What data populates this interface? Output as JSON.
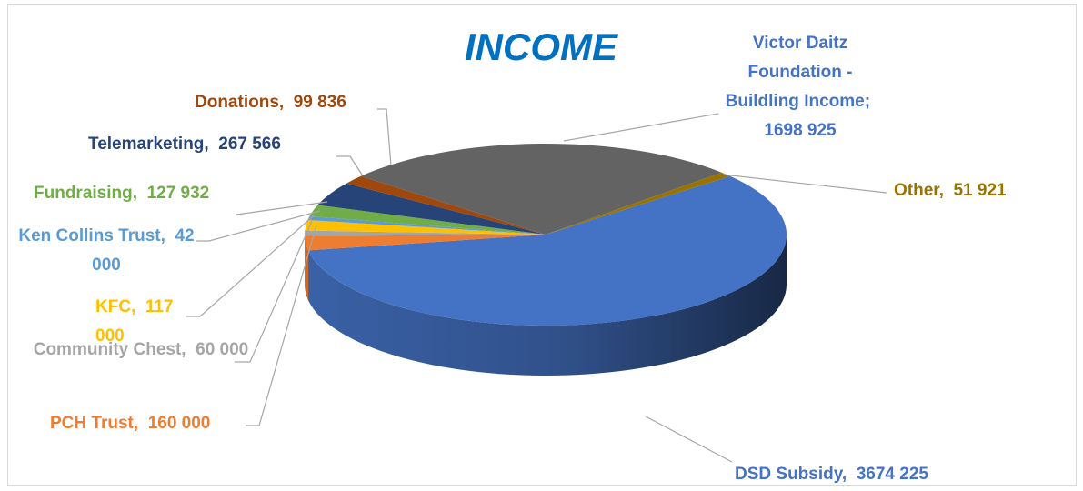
{
  "chart_data": {
    "type": "pie3d",
    "title": "INCOME",
    "categories": [
      "DSD Subsidy,",
      "PCH Trust,",
      "Community Chest,",
      "KFC,",
      "Ken Collins Trust,",
      "Fundraising,",
      "Telemarketing,",
      "Donations,",
      "Victor Daitz Foundation - Buildling Income;",
      "Other,"
    ],
    "values": [
      3674225,
      160000,
      60000,
      117000,
      42000,
      127932,
      267566,
      99836,
      1698925,
      51921
    ],
    "value_labels": [
      "3674 225",
      "160 000",
      "60 000",
      "117 000",
      "42 000",
      "127 932",
      "267 566",
      "99 836",
      "1698 925",
      "51 921"
    ],
    "colors": [
      "#4472c4",
      "#ed7d31",
      "#a5a5a5",
      "#ffc000",
      "#5b9bd5",
      "#70ad47",
      "#264478",
      "#9e480e",
      "#636363",
      "#997300"
    ]
  }
}
